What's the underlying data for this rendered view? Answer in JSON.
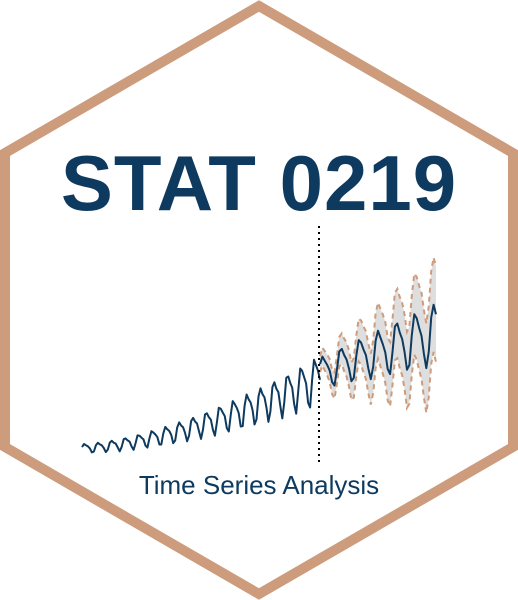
{
  "logo": {
    "title": "STAT 0219",
    "subtitle": "Time Series Analysis"
  },
  "colors": {
    "hex_border": "#cd9c7c",
    "text": "#0d3a5e",
    "series_line": "#0d3a5e",
    "forecast_band": "#dcdcdc",
    "forecast_bounds": "#cd9c7c",
    "divider": "#000000"
  },
  "icon_names": [
    "hexagon-border",
    "time-series-sparkline"
  ]
}
